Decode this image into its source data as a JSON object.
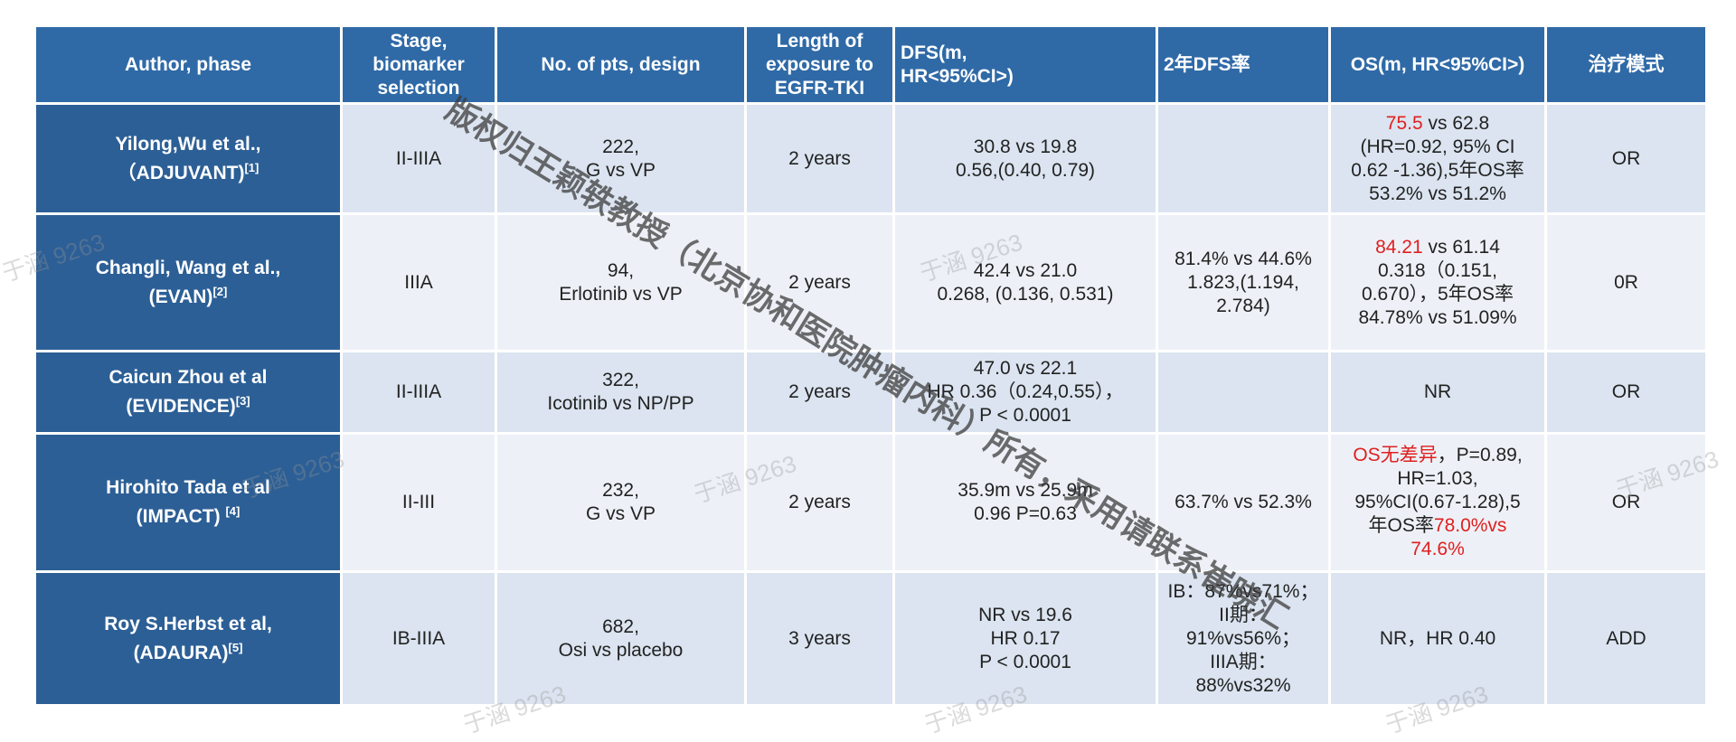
{
  "table": {
    "headers": [
      [
        "Author, phase"
      ],
      [
        "Stage,",
        "biomarker",
        "selection"
      ],
      [
        "No. of pts, design"
      ],
      [
        "Length of",
        "exposure to",
        "EGFR-TKI"
      ],
      [
        "DFS(m,",
        "HR<95%CI>)"
      ],
      [
        "2年DFS率"
      ],
      [
        "OS(m, HR<95%CI>)"
      ],
      [
        "治疗模式"
      ]
    ],
    "rows": [
      {
        "cells": [
          [
            "Yilong,Wu et al.,",
            [
              {
                "text": "（ADJUVANT)"
              },
              {
                "text": "[1]",
                "sup": true
              }
            ]
          ],
          [
            "II-IIIA"
          ],
          [
            "222,",
            "G vs VP"
          ],
          [
            "2 years"
          ],
          [
            "30.8 vs 19.8",
            "0.56,(0.40, 0.79)"
          ],
          [],
          [
            [
              {
                "text": "75.5",
                "color": "#e02020"
              },
              {
                "text": " vs 62.8"
              }
            ],
            "(HR=0.92, 95% CI",
            "0.62 -1.36),5年OS率",
            "53.2% vs 51.2%"
          ],
          [
            "OR"
          ]
        ]
      },
      {
        "cells": [
          [
            "Changli, Wang et al.,",
            [
              {
                "text": "(EVAN)"
              },
              {
                "text": "[2]",
                "sup": true
              }
            ]
          ],
          [
            "IIIA"
          ],
          [
            "94,",
            "Erlotinib vs VP"
          ],
          [
            "2 years"
          ],
          [
            "42.4 vs 21.0",
            "0.268, (0.136, 0.531)"
          ],
          [
            "81.4% vs 44.6%",
            "1.823,(1.194,",
            "2.784)"
          ],
          [
            [
              {
                "text": "84.21",
                "color": "#e02020"
              },
              {
                "text": " vs 61.14"
              }
            ],
            "0.318（0.151,",
            "0.670），5年OS率",
            "84.78% vs 51.09%"
          ],
          [
            "0R"
          ]
        ]
      },
      {
        "cells": [
          [
            "Caicun Zhou et al",
            [
              {
                "text": "(EVIDENCE)"
              },
              {
                "text": "[3]",
                "sup": true
              }
            ]
          ],
          [
            "II-IIIA"
          ],
          [
            "322,",
            "Icotinib vs NP/PP"
          ],
          [
            "2 years"
          ],
          [
            "47.0 vs 22.1",
            "HR 0.36（0.24,0.55），",
            "P < 0.0001"
          ],
          [],
          [
            "NR"
          ],
          [
            "OR"
          ]
        ]
      },
      {
        "cells": [
          [
            "Hirohito Tada et al",
            [
              {
                "text": "(IMPACT) "
              },
              {
                "text": "[4]",
                "sup": true
              }
            ]
          ],
          [
            "II-III"
          ],
          [
            "232,",
            "G vs VP"
          ],
          [
            "2 years"
          ],
          [
            "35.9m vs 25.9m",
            "0.96 P=0.63"
          ],
          [
            "63.7% vs 52.3%"
          ],
          [
            [
              {
                "text": "OS无差异",
                "color": "#e02020"
              },
              {
                "text": "，P=0.89,"
              }
            ],
            "HR=1.03,",
            "95%CI(0.67-1.28),5",
            [
              {
                "text": "年OS率"
              },
              {
                "text": "78.0%vs",
                "color": "#e02020"
              }
            ],
            [
              {
                "text": "74.6%",
                "color": "#e02020"
              }
            ]
          ],
          [
            "OR"
          ]
        ]
      },
      {
        "cells": [
          [
            "Roy S.Herbst et al,",
            [
              {
                "text": "(ADAURA)"
              },
              {
                "text": "[5]",
                "sup": true
              }
            ]
          ],
          [
            "IB-IIIA"
          ],
          [
            "682,",
            "Osi vs placebo"
          ],
          [
            "3 years"
          ],
          [
            "NR vs 19.6",
            "HR 0.17",
            "P < 0.0001"
          ],
          [
            "IB：87%vs71%；",
            "II期：",
            "91%vs56%；",
            "IIIA期：",
            "88%vs32%"
          ],
          [
            "NR，HR 0.40"
          ],
          [
            "ADD"
          ]
        ]
      }
    ]
  },
  "watermark": {
    "main": "版权归王颖轶教授（北京协和医院肿瘤内科）所有，采用请联系崔晓汇",
    "tag": "于涵 9263"
  }
}
